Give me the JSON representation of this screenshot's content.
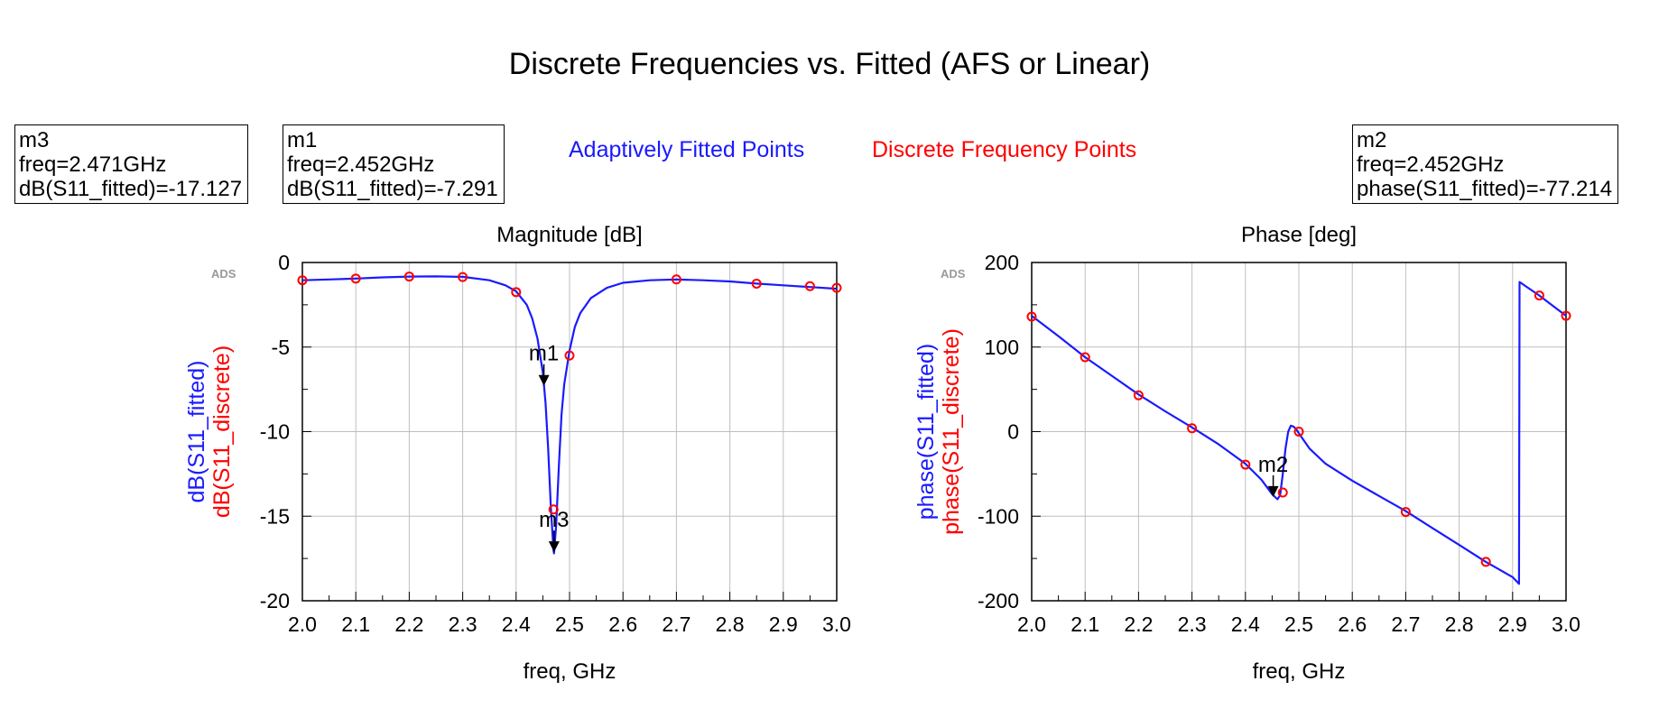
{
  "title": "Discrete Frequencies vs. Fitted (AFS or Linear)",
  "colors": {
    "fitted": "#1a1aff",
    "discrete": "#ff0000",
    "marker": "#000000",
    "grid": "#bfbfbf"
  },
  "legend": {
    "fitted_label": "Adaptively Fitted Points",
    "discrete_label": "Discrete Frequency Points"
  },
  "marker_boxes": {
    "m3": {
      "name": "m3",
      "line1": "freq=2.471GHz",
      "line2": "dB(S11_fitted)=-17.127"
    },
    "m1": {
      "name": "m1",
      "line1": "freq=2.452GHz",
      "line2": "dB(S11_fitted)=-7.291"
    },
    "m2": {
      "name": "m2",
      "line1": "freq=2.452GHz",
      "line2": "phase(S11_fitted)=-77.214"
    }
  },
  "chart_data": [
    {
      "type": "line",
      "title": "Magnitude [dB]",
      "watermark": "ADS",
      "xlabel": "freq, GHz",
      "ylabel_fitted": "dB(S11_fitted)",
      "ylabel_discrete": "dB(S11_discrete)",
      "xlim": [
        2.0,
        3.0
      ],
      "ylim": [
        -20,
        0
      ],
      "xticks": [
        "2.0",
        "2.1",
        "2.2",
        "2.3",
        "2.4",
        "2.5",
        "2.6",
        "2.7",
        "2.8",
        "2.9",
        "3.0"
      ],
      "yticks": [
        "0",
        "-5",
        "-10",
        "-15",
        "-20"
      ],
      "grid": true,
      "series": [
        {
          "name": "dB(S11_fitted)",
          "x": [
            2.0,
            2.05,
            2.1,
            2.15,
            2.2,
            2.25,
            2.3,
            2.35,
            2.38,
            2.4,
            2.42,
            2.43,
            2.44,
            2.45,
            2.455,
            2.46,
            2.465,
            2.47,
            2.471,
            2.475,
            2.48,
            2.485,
            2.49,
            2.5,
            2.51,
            2.52,
            2.54,
            2.57,
            2.6,
            2.65,
            2.7,
            2.75,
            2.8,
            2.85,
            2.9,
            2.95,
            3.0
          ],
          "y": [
            -1.05,
            -1.0,
            -0.95,
            -0.88,
            -0.83,
            -0.82,
            -0.85,
            -1.05,
            -1.35,
            -1.7,
            -2.5,
            -3.3,
            -4.5,
            -6.5,
            -8.3,
            -11.0,
            -14.5,
            -17.0,
            -17.2,
            -15.5,
            -12.0,
            -9.0,
            -7.2,
            -5.2,
            -3.8,
            -3.0,
            -2.1,
            -1.5,
            -1.2,
            -1.05,
            -1.0,
            -1.05,
            -1.12,
            -1.25,
            -1.35,
            -1.45,
            -1.55
          ]
        },
        {
          "name": "dB(S11_discrete)",
          "x": [
            2.0,
            2.1,
            2.2,
            2.3,
            2.4,
            2.47,
            2.5,
            2.7,
            2.85,
            2.95,
            3.0
          ],
          "y": [
            -1.05,
            -0.95,
            -0.83,
            -0.86,
            -1.75,
            -14.6,
            -5.5,
            -1.0,
            -1.25,
            -1.4,
            -1.5
          ]
        }
      ],
      "markers": [
        {
          "name": "m1",
          "x": 2.452,
          "y": -7.291
        },
        {
          "name": "m3",
          "x": 2.471,
          "y": -17.127
        }
      ]
    },
    {
      "type": "line",
      "title": "Phase [deg]",
      "watermark": "ADS",
      "xlabel": "freq, GHz",
      "ylabel_fitted": "phase(S11_fitted)",
      "ylabel_discrete": "phase(S11_discrete)",
      "xlim": [
        2.0,
        3.0
      ],
      "ylim": [
        -200,
        200
      ],
      "xticks": [
        "2.0",
        "2.1",
        "2.2",
        "2.3",
        "2.4",
        "2.5",
        "2.6",
        "2.7",
        "2.8",
        "2.9",
        "3.0"
      ],
      "yticks": [
        "200",
        "100",
        "0",
        "-100",
        "-200"
      ],
      "grid": true,
      "series": [
        {
          "name": "phase(S11_fitted)",
          "x": [
            2.0,
            2.05,
            2.1,
            2.15,
            2.2,
            2.25,
            2.3,
            2.35,
            2.4,
            2.43,
            2.45,
            2.46,
            2.465,
            2.47,
            2.475,
            2.48,
            2.485,
            2.49,
            2.495,
            2.5,
            2.52,
            2.55,
            2.6,
            2.65,
            2.7,
            2.75,
            2.8,
            2.85,
            2.9,
            2.912,
            2.913,
            2.95,
            3.0
          ],
          "y": [
            137,
            113,
            88,
            66,
            44,
            24,
            5,
            -15,
            -38,
            -57,
            -74,
            -80,
            -75,
            -50,
            -20,
            0,
            7,
            6,
            3,
            -2,
            -20,
            -38,
            -58,
            -76,
            -94,
            -114,
            -134,
            -154,
            -172,
            -180,
            177,
            161,
            137
          ]
        },
        {
          "name": "phase(S11_discrete)",
          "x": [
            2.0,
            2.1,
            2.2,
            2.3,
            2.4,
            2.47,
            2.5,
            2.7,
            2.85,
            2.95,
            3.0
          ],
          "y": [
            136,
            88,
            43,
            4,
            -39,
            -72,
            0,
            -95,
            -154,
            161,
            137
          ]
        }
      ],
      "markers": [
        {
          "name": "m2",
          "x": 2.452,
          "y": -77.214
        }
      ]
    }
  ]
}
